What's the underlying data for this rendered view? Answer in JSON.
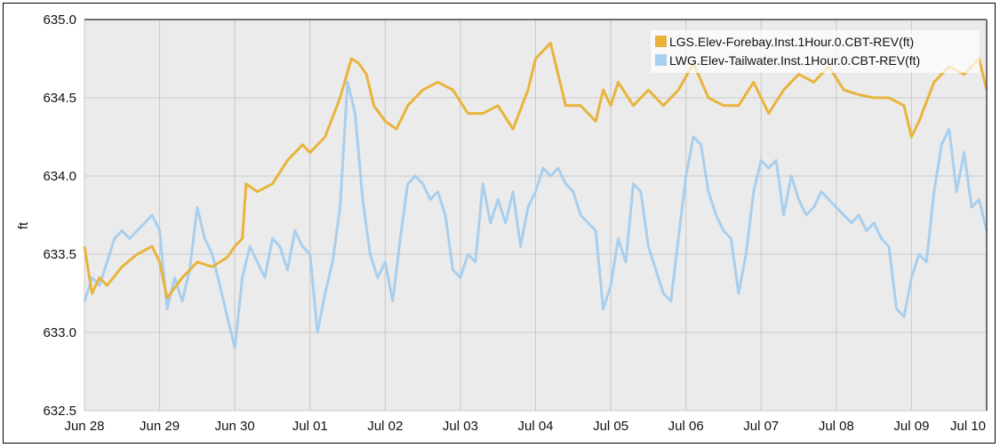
{
  "chart_data": {
    "type": "line",
    "title": "",
    "xlabel": "",
    "ylabel": "ft",
    "ylim": [
      632.5,
      635.0
    ],
    "yticks": [
      "635.0",
      "634.5",
      "634.0",
      "633.5",
      "633.0",
      "632.5"
    ],
    "xticks": [
      "Jun 28",
      "Jun 29",
      "Jun 30",
      "Jul 01",
      "Jul 02",
      "Jul 03",
      "Jul 04",
      "Jul 05",
      "Jul 06",
      "Jul 07",
      "Jul 08",
      "Jul 09",
      "Jul 10"
    ],
    "xlim": [
      0,
      12
    ],
    "grid": true,
    "legend_position": "top-right",
    "series": [
      {
        "name": "LGS.Elev-Forebay.Inst.1Hour.0.CBT-REV(ft)",
        "color": "#e8b43c",
        "x": [
          0,
          0.1,
          0.2,
          0.3,
          0.5,
          0.7,
          0.9,
          1.0,
          1.1,
          1.3,
          1.5,
          1.7,
          1.9,
          2.0,
          2.1,
          2.15,
          2.3,
          2.5,
          2.7,
          2.9,
          3.0,
          3.2,
          3.4,
          3.55,
          3.65,
          3.75,
          3.85,
          4.0,
          4.15,
          4.3,
          4.5,
          4.7,
          4.9,
          5.1,
          5.3,
          5.5,
          5.7,
          5.9,
          6.0,
          6.2,
          6.4,
          6.6,
          6.8,
          6.9,
          7.0,
          7.1,
          7.3,
          7.5,
          7.7,
          7.9,
          8.1,
          8.3,
          8.5,
          8.7,
          8.9,
          9.1,
          9.3,
          9.5,
          9.7,
          9.9,
          10.1,
          10.3,
          10.5,
          10.7,
          10.9,
          11.0,
          11.1,
          11.3,
          11.5,
          11.7,
          11.9,
          12.0
        ],
        "values": [
          633.55,
          633.25,
          633.35,
          633.3,
          633.42,
          633.5,
          633.55,
          633.45,
          633.22,
          633.35,
          633.45,
          633.42,
          633.48,
          633.55,
          633.6,
          633.95,
          633.9,
          633.95,
          634.1,
          634.2,
          634.15,
          634.25,
          634.5,
          634.75,
          634.72,
          634.65,
          634.45,
          634.35,
          634.3,
          634.45,
          634.55,
          634.6,
          634.55,
          634.4,
          634.4,
          634.45,
          634.3,
          634.55,
          634.75,
          634.85,
          634.45,
          634.45,
          634.35,
          634.55,
          634.45,
          634.6,
          634.45,
          634.55,
          634.45,
          634.55,
          634.72,
          634.5,
          634.45,
          634.45,
          634.6,
          634.4,
          634.55,
          634.65,
          634.6,
          634.7,
          634.55,
          634.52,
          634.5,
          634.5,
          634.45,
          634.25,
          634.35,
          634.6,
          634.7,
          634.65,
          634.75,
          634.55
        ]
      },
      {
        "name": "LWG.Elev-Tailwater.Inst.1Hour.0.CBT-REV(ft)",
        "color": "#a8cfee",
        "x": [
          0,
          0.1,
          0.2,
          0.3,
          0.4,
          0.5,
          0.6,
          0.7,
          0.8,
          0.9,
          1.0,
          1.1,
          1.2,
          1.3,
          1.4,
          1.5,
          1.6,
          1.7,
          1.8,
          1.9,
          2.0,
          2.1,
          2.2,
          2.3,
          2.4,
          2.5,
          2.6,
          2.7,
          2.8,
          2.9,
          3.0,
          3.1,
          3.2,
          3.3,
          3.4,
          3.5,
          3.6,
          3.7,
          3.8,
          3.9,
          4.0,
          4.1,
          4.2,
          4.3,
          4.4,
          4.5,
          4.6,
          4.7,
          4.8,
          4.9,
          5.0,
          5.1,
          5.2,
          5.3,
          5.4,
          5.5,
          5.6,
          5.7,
          5.8,
          5.9,
          6.0,
          6.1,
          6.2,
          6.3,
          6.4,
          6.5,
          6.6,
          6.7,
          6.8,
          6.9,
          7.0,
          7.1,
          7.2,
          7.3,
          7.4,
          7.5,
          7.6,
          7.7,
          7.8,
          7.9,
          8.0,
          8.1,
          8.2,
          8.3,
          8.4,
          8.5,
          8.6,
          8.7,
          8.8,
          8.9,
          9.0,
          9.1,
          9.2,
          9.3,
          9.4,
          9.5,
          9.6,
          9.7,
          9.8,
          9.9,
          10.0,
          10.1,
          10.2,
          10.3,
          10.4,
          10.5,
          10.6,
          10.7,
          10.8,
          10.9,
          11.0,
          11.1,
          11.2,
          11.3,
          11.4,
          11.5,
          11.6,
          11.7,
          11.8,
          11.9,
          12.0
        ],
        "values": [
          633.2,
          633.35,
          633.3,
          633.45,
          633.6,
          633.65,
          633.6,
          633.65,
          633.7,
          633.75,
          633.65,
          633.15,
          633.35,
          633.2,
          633.4,
          633.8,
          633.6,
          633.5,
          633.3,
          633.1,
          632.9,
          633.35,
          633.55,
          633.45,
          633.35,
          633.6,
          633.55,
          633.4,
          633.65,
          633.55,
          633.5,
          633.0,
          633.25,
          633.45,
          633.8,
          634.6,
          634.4,
          633.85,
          633.5,
          633.35,
          633.45,
          633.2,
          633.6,
          633.95,
          634.0,
          633.95,
          633.85,
          633.9,
          633.75,
          633.4,
          633.35,
          633.5,
          633.45,
          633.95,
          633.7,
          633.85,
          633.7,
          633.9,
          633.55,
          633.8,
          633.9,
          634.05,
          634.0,
          634.05,
          633.95,
          633.9,
          633.75,
          633.7,
          633.65,
          633.15,
          633.3,
          633.6,
          633.45,
          633.95,
          633.9,
          633.55,
          633.4,
          633.25,
          633.2,
          633.6,
          634.0,
          634.25,
          634.2,
          633.9,
          633.75,
          633.65,
          633.6,
          633.25,
          633.5,
          633.9,
          634.1,
          634.05,
          634.1,
          633.75,
          634.0,
          633.85,
          633.75,
          633.8,
          633.9,
          633.85,
          633.8,
          633.75,
          633.7,
          633.75,
          633.65,
          633.7,
          633.6,
          633.55,
          633.15,
          633.1,
          633.35,
          633.5,
          633.45,
          633.9,
          634.2,
          634.3,
          633.9,
          634.15,
          633.8,
          633.85,
          633.65
        ]
      }
    ]
  }
}
